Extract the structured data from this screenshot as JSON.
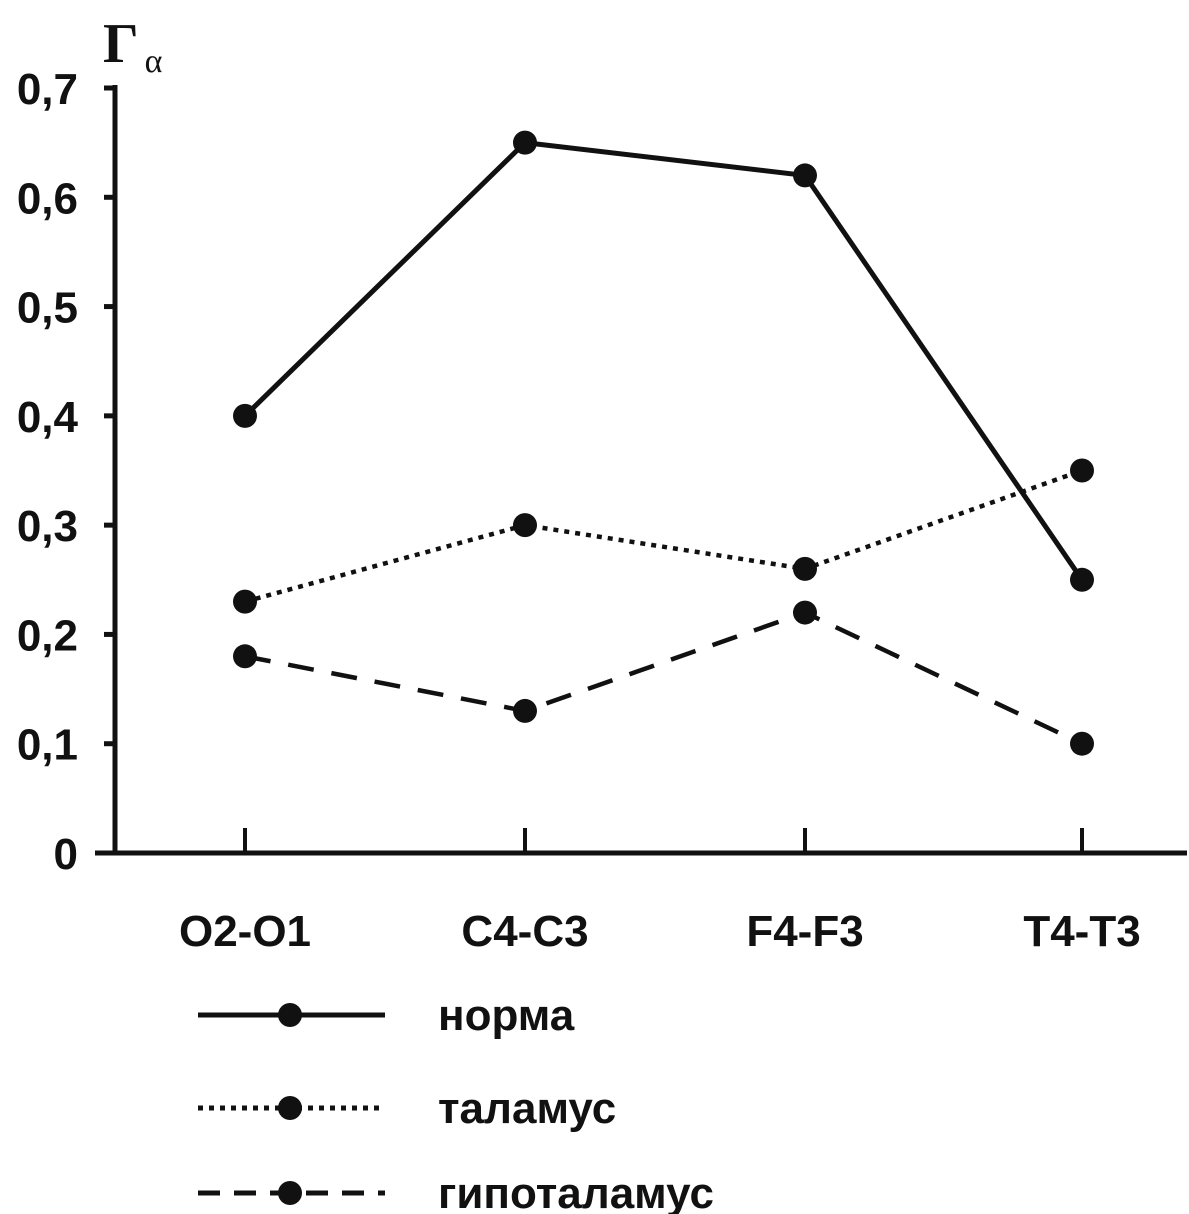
{
  "chart_data": {
    "type": "line",
    "categories": [
      "O2-O1",
      "C4-C3",
      "F4-F3",
      "T4-T3"
    ],
    "ylabel": "Γ",
    "ylabel_subscript": "α",
    "ylim": [
      0,
      0.7
    ],
    "yticks": [
      "0",
      "0,1",
      "0,2",
      "0,3",
      "0,4",
      "0,5",
      "0,6",
      "0,7"
    ],
    "grid": false,
    "legend_position": "bottom",
    "series": [
      {
        "name": "норма",
        "style": "solid",
        "values": [
          0.4,
          0.65,
          0.62,
          0.25
        ]
      },
      {
        "name": "таламус",
        "style": "dotted",
        "values": [
          0.23,
          0.3,
          0.26,
          0.35
        ]
      },
      {
        "name": "гипоталамус",
        "style": "dashed",
        "values": [
          0.18,
          0.13,
          0.22,
          0.1
        ]
      }
    ],
    "colors": {
      "line": "#111111",
      "background": "#ffffff"
    }
  }
}
